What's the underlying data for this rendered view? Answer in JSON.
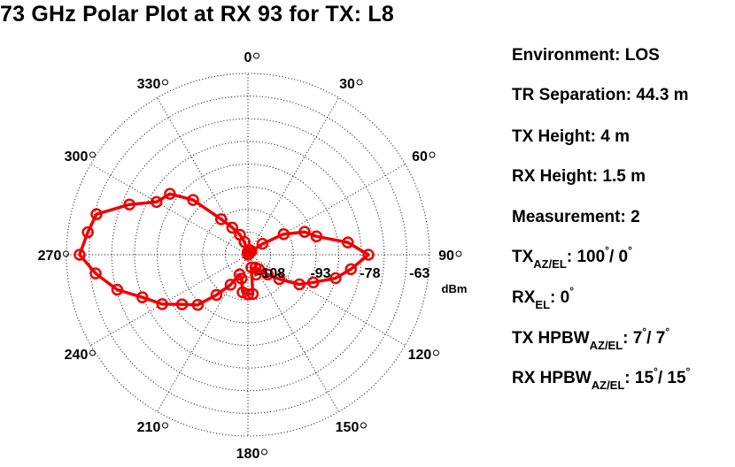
{
  "title": "73 GHz Polar Plot at RX 93 for TX: L8",
  "info": {
    "environment": "Environment: LOS",
    "tr_separation": "TR Separation: 44.3 m",
    "tx_height": "TX Height: 4 m",
    "rx_height": "RX Height: 1.5 m",
    "measurement": "Measurement: 2",
    "tx_az_el": {
      "prefix": "TX",
      "sub": "AZ/EL",
      "colon": ": ",
      "v1": "100",
      "sep": "/ ",
      "v2": "0",
      "deg": "°"
    },
    "rx_el": {
      "prefix": "RX",
      "sub": "EL",
      "colon": ": ",
      "v1": "0",
      "deg": "°"
    },
    "tx_hpbw": {
      "prefix": "TX HPBW",
      "sub": "AZ/EL",
      "colon": ": ",
      "v1": "7",
      "sep": "/ ",
      "v2": "7",
      "deg": "°"
    },
    "rx_hpbw": {
      "prefix": "RX HPBW",
      "sub": "AZ/EL",
      "colon": ": ",
      "v1": "15",
      "sep": "/ ",
      "v2": "15",
      "deg": "°"
    }
  },
  "colors": {
    "series": "#ee0000",
    "grid": "#000000"
  },
  "chart_data": {
    "type": "line",
    "subtype": "polar",
    "angle_direction": "clockwise",
    "zero_angle": "top",
    "angle_ticks": [
      0,
      30,
      60,
      90,
      120,
      150,
      180,
      210,
      240,
      270,
      300,
      330
    ],
    "angle_tick_labels": [
      "0",
      "30",
      "60",
      "90",
      "120",
      "150",
      "180",
      "210",
      "240",
      "270",
      "300",
      "330"
    ],
    "angle_tick_suffix": "°",
    "radial_ticks": [
      -108,
      -93,
      -78,
      -63
    ],
    "radial_tick_labels": [
      "-108",
      "-93",
      "-78",
      "-63"
    ],
    "radial_unit": "dBm",
    "r_range": [
      -115,
      -60
    ],
    "grid": true,
    "series": [
      {
        "angles": [
          0,
          8,
          15,
          23,
          30,
          38,
          45,
          53,
          60,
          68,
          75,
          83,
          90,
          98,
          105,
          113,
          120,
          128,
          135,
          143,
          150,
          158,
          165,
          173,
          180,
          188,
          195,
          203,
          210,
          218,
          225,
          233,
          240,
          248,
          255,
          263,
          270,
          278,
          285,
          293,
          300,
          308,
          315,
          323,
          330,
          338,
          345,
          353
        ],
        "values": [
          -115,
          -114.2,
          -113.5,
          -113.5,
          -114.5,
          -114.5,
          -113.5,
          -109.5,
          -102.5,
          -96.5,
          -93.5,
          -84.5,
          -78.5,
          -83.5,
          -87.5,
          -93.5,
          -97,
          -103,
          -106.5,
          -109.5,
          -110.5,
          -108.5,
          -111,
          -103,
          -103,
          -103.5,
          -107.5,
          -108.5,
          -104.5,
          -99.5,
          -93.5,
          -90,
          -85,
          -80.5,
          -74,
          -68.5,
          -64,
          -66,
          -67.5,
          -76,
          -83,
          -85,
          -91.5,
          -101.5,
          -105.5,
          -108.5,
          -111,
          -114.2
        ]
      }
    ]
  }
}
